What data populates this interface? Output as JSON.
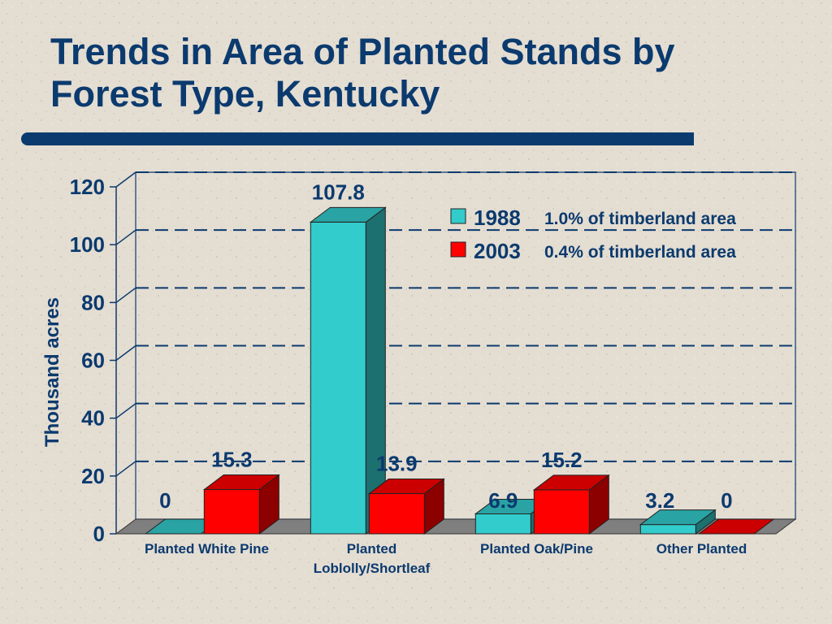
{
  "title_lines": [
    "Trends in Area of Planted Stands by",
    "Forest Type, Kentucky"
  ],
  "colors": {
    "title": "#0b3a6e",
    "series_1988": "#33cccc",
    "series_2003": "#ff0000",
    "grid": "#0b3a6e"
  },
  "chart_data": {
    "type": "bar",
    "categories": [
      [
        "Planted White Pine"
      ],
      [
        "Planted",
        "Loblolly/Shortleaf"
      ],
      [
        "Planted Oak/Pine"
      ],
      [
        "Other Planted"
      ]
    ],
    "series": [
      {
        "name": "1988",
        "values": [
          0,
          107.8,
          6.9,
          3.2
        ],
        "labels": [
          "0",
          "107.8",
          "6.9",
          "3.2"
        ],
        "color": "#33cccc",
        "note": "1.0% of timberland area"
      },
      {
        "name": "2003",
        "values": [
          15.3,
          13.9,
          15.2,
          0
        ],
        "labels": [
          "15.3",
          "13.9",
          "15.2",
          "0"
        ],
        "color": "#ff0000",
        "note": "0.4% of timberland area"
      }
    ],
    "ylabel": "Thousand acres",
    "yticks": [
      "0",
      "20",
      "40",
      "60",
      "80",
      "100",
      "120"
    ],
    "ylim": [
      0,
      120
    ],
    "grid": true,
    "legend_position": "top-right"
  }
}
